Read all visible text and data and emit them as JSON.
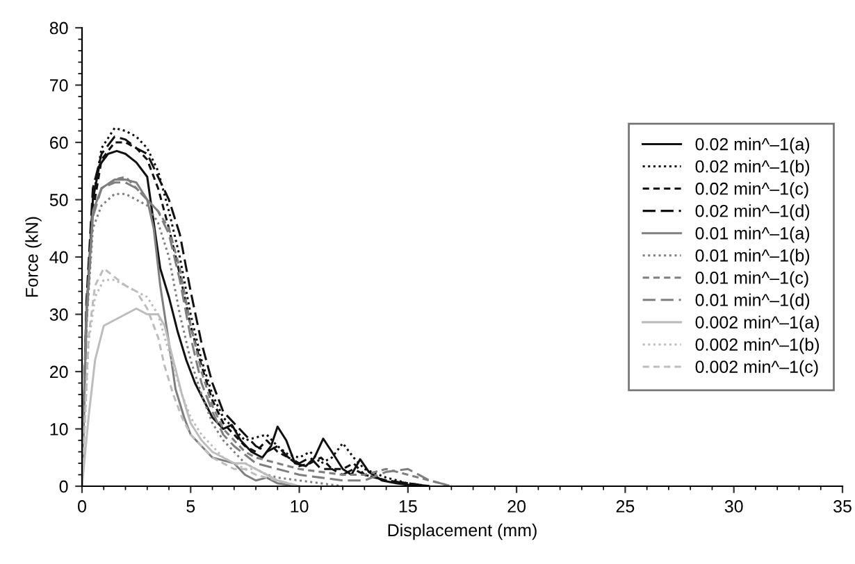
{
  "chart_data": {
    "type": "line",
    "xlabel": "Displacement (mm)",
    "ylabel": "Force (kN)",
    "xlim": [
      0,
      35
    ],
    "ylim": [
      0,
      80
    ],
    "xticks": [
      0,
      5,
      10,
      15,
      20,
      25,
      30,
      35
    ],
    "yticks": [
      0,
      10,
      20,
      30,
      40,
      50,
      60,
      70,
      80
    ],
    "legend": "center right",
    "grid": false,
    "marker": "none",
    "series": [
      {
        "name": "0.02 min^–1(a)",
        "color": "#111111",
        "line_style": "solid",
        "x": [
          0,
          0.2,
          0.5,
          0.8,
          1.2,
          1.6,
          2,
          2.5,
          3,
          3.3,
          3.6,
          4,
          4.4,
          4.8,
          5.2,
          5.6,
          6,
          6.5,
          6.9,
          7.3,
          7.8,
          8.3,
          8.7,
          9,
          9.4,
          9.8,
          10.3,
          10.7,
          11.1,
          11.5,
          12,
          12.4,
          12.8,
          13.2,
          13.8,
          14.5,
          15.5
        ],
        "values": [
          0,
          30,
          50,
          56,
          58,
          58.5,
          58,
          56.5,
          54,
          46,
          38,
          33,
          27,
          22,
          18,
          15,
          12,
          10,
          10.7,
          8,
          6,
          5,
          7,
          10.4,
          8,
          4,
          3.5,
          5,
          8.3,
          6,
          3,
          2,
          4.7,
          2.5,
          1,
          0.5,
          0
        ]
      },
      {
        "name": "0.02 min^–1(b)",
        "color": "#111111",
        "line_style": "dotted",
        "x": [
          0,
          0.2,
          0.5,
          0.9,
          1.5,
          2,
          2.5,
          3,
          3.5,
          4,
          4.5,
          5,
          5.5,
          6,
          6.5,
          7,
          7.5,
          8,
          8.5,
          9,
          9.5,
          10,
          10.5,
          11,
          11.5,
          12,
          12.5,
          13,
          14,
          15,
          16
        ],
        "values": [
          0,
          28,
          50,
          59,
          62.5,
          62,
          61,
          59,
          55,
          48,
          40,
          30,
          22,
          16,
          12,
          10,
          8,
          8.5,
          9,
          7,
          5.5,
          5,
          6,
          4,
          5,
          7.5,
          5,
          3,
          1.5,
          0.5,
          0
        ]
      },
      {
        "name": "0.02 min^–1(c)",
        "color": "#111111",
        "line_style": "dashed",
        "x": [
          0,
          0.2,
          0.5,
          0.9,
          1.5,
          2,
          2.5,
          3,
          3.5,
          4,
          4.5,
          5,
          5.5,
          6,
          6.5,
          7,
          7.5,
          8,
          8.5,
          9,
          9.5,
          10,
          10.5,
          11,
          11.5,
          12,
          12.5,
          13,
          14,
          15,
          16
        ],
        "values": [
          0,
          30,
          48,
          57,
          60,
          60,
          59,
          57,
          52,
          45,
          37,
          28,
          21,
          15,
          11,
          9,
          7,
          6,
          8,
          6,
          5,
          3.5,
          4,
          5,
          3,
          3,
          4,
          2,
          1,
          0.5,
          0
        ]
      },
      {
        "name": "0.02 min^–1(d)",
        "color": "#111111",
        "line_style": "longdash",
        "x": [
          0,
          0.2,
          0.5,
          0.9,
          1.5,
          2,
          2.5,
          3,
          3.5,
          4,
          4.5,
          5,
          5.5,
          6,
          6.5,
          7,
          7.5,
          8,
          8.5,
          9,
          9.5,
          10,
          10.5,
          11,
          11.5,
          12,
          12.5,
          13,
          14,
          15,
          16
        ],
        "values": [
          0,
          32,
          52,
          58,
          61,
          60.5,
          59,
          58,
          54,
          50,
          44,
          34,
          25,
          18,
          13,
          11,
          9,
          7,
          6,
          7,
          5,
          4,
          5,
          3,
          3,
          2,
          3,
          2,
          1,
          0.5,
          0
        ]
      },
      {
        "name": "0.01 min^–1(a)",
        "color": "#7f7f7f",
        "line_style": "solid",
        "x": [
          0,
          0.2,
          0.5,
          0.9,
          1.5,
          2,
          2.5,
          3,
          3.3,
          3.6,
          4,
          4.3,
          4.7,
          5,
          5.5,
          6,
          6.5,
          7,
          7.5,
          8,
          8.5,
          9,
          10
        ],
        "values": [
          0,
          30,
          48,
          52,
          53.5,
          53.5,
          53,
          50,
          45,
          35,
          25,
          17,
          12,
          9,
          7,
          5,
          4.5,
          4,
          2,
          1,
          1.5,
          0.5,
          0
        ]
      },
      {
        "name": "0.01 min^–1(b)",
        "color": "#7f7f7f",
        "line_style": "dotted",
        "x": [
          0,
          0.2,
          0.5,
          0.9,
          1.5,
          2,
          2.5,
          3,
          3.5,
          4,
          4.5,
          5,
          5.5,
          6,
          6.5,
          7,
          7.5,
          8,
          8.5,
          9,
          10,
          11,
          12
        ],
        "values": [
          0,
          28,
          45,
          49,
          51,
          51,
          50,
          49,
          46,
          40,
          30,
          22,
          16,
          11,
          8,
          6,
          4,
          3,
          2,
          1.5,
          1,
          0.5,
          0
        ]
      },
      {
        "name": "0.01 min^–1(c)",
        "color": "#7f7f7f",
        "line_style": "dashed",
        "x": [
          0,
          0.2,
          0.5,
          0.9,
          1.5,
          2,
          2.5,
          3,
          3.5,
          4,
          4.5,
          5,
          5.5,
          6,
          6.5,
          7,
          7.5,
          8,
          9,
          10,
          11,
          12,
          13,
          14,
          15,
          16,
          17
        ],
        "values": [
          0,
          30,
          48,
          52,
          53.5,
          54,
          52,
          50,
          48,
          45,
          38,
          28,
          20,
          14,
          10,
          8,
          6,
          5,
          4,
          3,
          2.5,
          2,
          2,
          3,
          2,
          1,
          0
        ]
      },
      {
        "name": "0.01 min^–1(d)",
        "color": "#7f7f7f",
        "line_style": "longdash",
        "x": [
          0,
          0.2,
          0.5,
          0.9,
          1.5,
          2,
          2.5,
          3,
          3.5,
          4,
          4.5,
          5,
          5.5,
          6,
          6.5,
          7,
          7.5,
          8,
          9,
          10,
          11,
          12,
          13,
          14,
          15,
          16,
          17
        ],
        "values": [
          0,
          28,
          47,
          52,
          53,
          53,
          52,
          50,
          48,
          44,
          36,
          26,
          18,
          13,
          9,
          7,
          5.5,
          4,
          3,
          2,
          1.5,
          1,
          1,
          2.5,
          3,
          1,
          0
        ]
      },
      {
        "name": "0.002 min^–1(a)",
        "color": "#bdbdbd",
        "line_style": "solid",
        "x": [
          0,
          0.3,
          0.6,
          1,
          1.5,
          2,
          2.5,
          3,
          3.5,
          3.8,
          4.2,
          4.6,
          5,
          5.5,
          6,
          6.5,
          7,
          7.5,
          8,
          8.5,
          9,
          10
        ],
        "values": [
          0,
          12,
          22,
          28,
          29,
          30,
          31,
          30,
          30,
          28,
          22,
          16,
          11,
          8,
          6,
          5,
          4,
          4,
          3,
          2,
          1,
          0
        ]
      },
      {
        "name": "0.002 min^–1(b)",
        "color": "#bdbdbd",
        "line_style": "dotted",
        "x": [
          0,
          0.3,
          0.6,
          1,
          1.5,
          2,
          2.5,
          3,
          3.5,
          3.8,
          4.2,
          4.6,
          5,
          5.5,
          6,
          6.5,
          7,
          7.5,
          8,
          8.5,
          9,
          10
        ],
        "values": [
          0,
          25,
          33,
          36,
          36,
          35,
          34,
          33,
          30,
          26,
          21,
          16,
          12,
          9,
          7,
          5,
          4,
          3,
          3,
          2,
          1,
          0
        ]
      },
      {
        "name": "0.002 min^–1(c)",
        "color": "#bdbdbd",
        "line_style": "dashed",
        "x": [
          0,
          0.3,
          0.6,
          1,
          1.5,
          2,
          2.5,
          3,
          3.5,
          3.8,
          4.2,
          4.6,
          5,
          5.5,
          6,
          6.5,
          7,
          7.5,
          8,
          8.5,
          9,
          10
        ],
        "values": [
          0,
          26,
          35,
          38,
          36.5,
          35,
          34,
          31,
          26,
          21,
          16,
          12,
          9,
          7,
          5,
          4,
          3,
          3,
          2,
          1.5,
          1,
          0
        ]
      }
    ]
  }
}
